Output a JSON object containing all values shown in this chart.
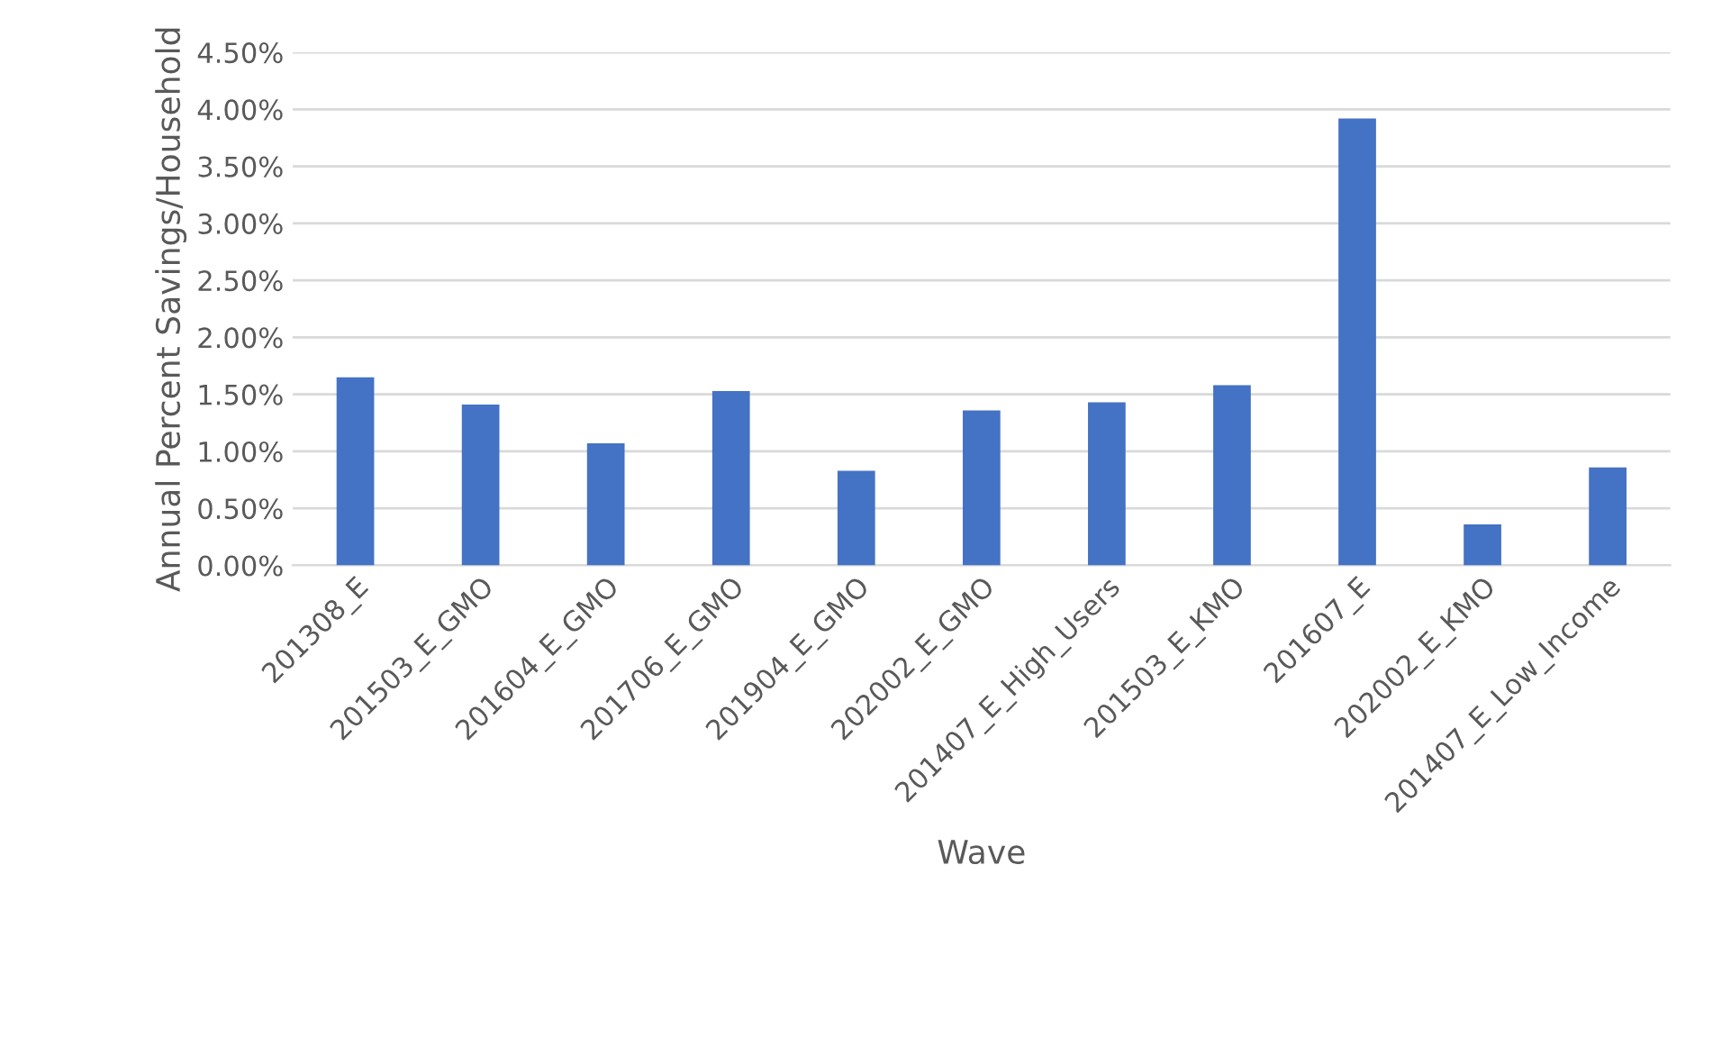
{
  "chart_data": {
    "type": "bar",
    "xlabel": "Wave",
    "ylabel": "Annual Percent Savings/Household",
    "categories": [
      "201308_E",
      "201503_E_GMO",
      "201604_E_GMO",
      "201706_E_GMO",
      "201904_E_GMO",
      "202002_E_GMO",
      "201407_E_High_Users",
      "201503_E_KMO",
      "201607_E",
      "202002_E_KMO",
      "201407_E_Low_Income"
    ],
    "values": [
      1.65,
      1.41,
      1.07,
      1.53,
      0.83,
      1.36,
      1.43,
      1.58,
      3.92,
      0.36,
      0.86
    ],
    "color": "#4472c4",
    "ylim": [
      0,
      4.5
    ],
    "yticks": [
      {
        "value": 0,
        "label": "0.00%"
      },
      {
        "value": 0.5,
        "label": "0.50%"
      },
      {
        "value": 1,
        "label": "1.00%"
      },
      {
        "value": 1.5,
        "label": "1.50%"
      },
      {
        "value": 2,
        "label": "2.00%"
      },
      {
        "value": 2.5,
        "label": "2.50%"
      },
      {
        "value": 3,
        "label": "3.00%"
      },
      {
        "value": 3.5,
        "label": "3.50%"
      },
      {
        "value": 4,
        "label": "4.00%"
      },
      {
        "value": 4.5,
        "label": "4.50%"
      }
    ],
    "grid": "y",
    "legend": false
  }
}
